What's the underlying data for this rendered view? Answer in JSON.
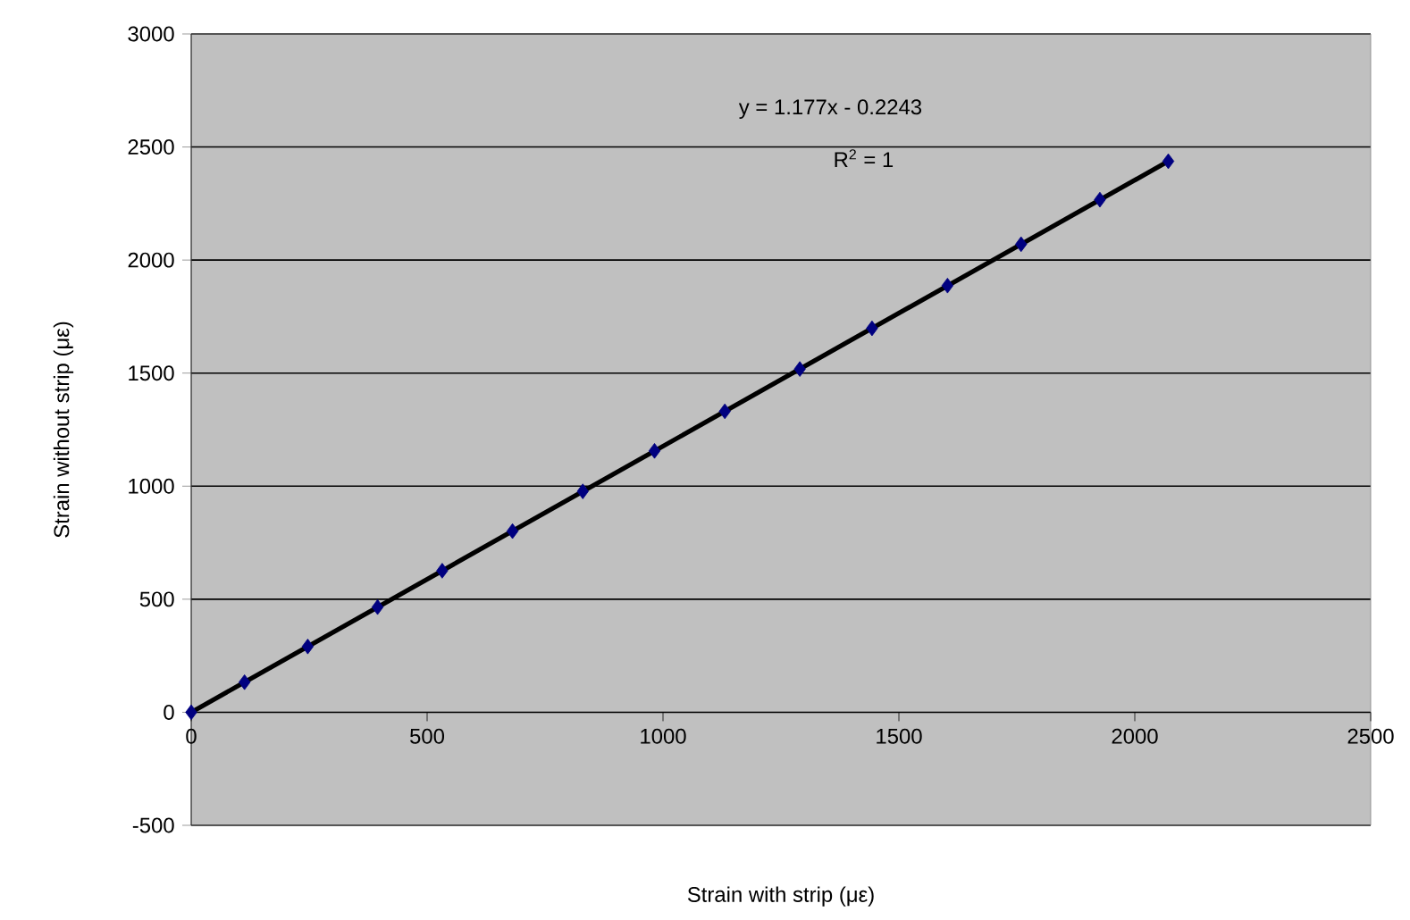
{
  "chart_data": {
    "type": "scatter",
    "xlabel": "Strain with strip (με)",
    "ylabel": "Strain without strip (με)",
    "x": [
      0,
      113,
      247,
      395,
      532,
      681,
      830,
      982,
      1131,
      1290,
      1443,
      1603,
      1759,
      1926,
      2071
    ],
    "series": [
      {
        "color": "#000080",
        "marker": "diamond",
        "values": [
          0,
          133,
          291,
          465,
          626,
          801,
          977,
          1156,
          1331,
          1518,
          1698,
          1887,
          2070,
          2267,
          2437
        ]
      },
      {
        "type": "line",
        "color": "#000000",
        "marker": "none",
        "x": [
          0,
          2071
        ],
        "values": [
          0,
          2437
        ]
      }
    ],
    "xlim": [
      0,
      2500
    ],
    "xticks": [
      0,
      500,
      1000,
      1500,
      2000,
      2500
    ],
    "ylim": [
      -500,
      3000
    ],
    "yticks": [
      -500,
      0,
      500,
      1000,
      1500,
      2000,
      2500,
      3000
    ],
    "grid": "y",
    "annotations": [
      "y = 1.177x - 0.2243",
      "R$^{2}$ = 1"
    ]
  }
}
